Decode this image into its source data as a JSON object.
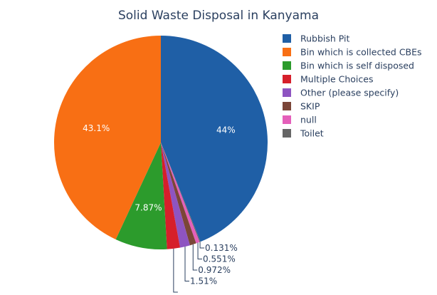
{
  "chart_data": {
    "type": "pie",
    "title": "Solid Waste Disposal in Kanyama",
    "legend_position": "right",
    "slices": [
      {
        "label": "Rubbish Pit",
        "percent": 44.0,
        "display": "44%",
        "color": "#1f5fa6",
        "label_text_color": "#ffffff"
      },
      {
        "label": "Toilet",
        "percent": 0.131,
        "display": "0.131%",
        "color": "#666666",
        "label_text_color": "#2a3f5f"
      },
      {
        "label": "null",
        "percent": 0.551,
        "display": "0.551%",
        "color": "#e45fba",
        "label_text_color": "#2a3f5f"
      },
      {
        "label": "SKIP",
        "percent": 0.972,
        "display": "0.972%",
        "color": "#7b4638",
        "label_text_color": "#2a3f5f"
      },
      {
        "label": "Other (please specify)",
        "percent": 1.51,
        "display": "1.51%",
        "color": "#8e54c1",
        "label_text_color": "#2a3f5f"
      },
      {
        "label": "Multiple Choices",
        "percent": 1.97,
        "display": "",
        "color": "#d61f2b",
        "label_text_color": "#2a3f5f"
      },
      {
        "label": "Bin which is self disposed",
        "percent": 7.87,
        "display": "7.87%",
        "color": "#2c9b2c",
        "label_text_color": "#ffffff"
      },
      {
        "label": "Bin which is collected CBEs",
        "percent": 43.1,
        "display": "43.1%",
        "color": "#f86f14",
        "label_text_color": "#ffffff"
      }
    ],
    "legend_order": [
      "Rubbish Pit",
      "Bin which is collected CBEs",
      "Bin which is self disposed",
      "Multiple Choices",
      "Other (please specify)",
      "SKIP",
      "null",
      "Toilet"
    ]
  }
}
